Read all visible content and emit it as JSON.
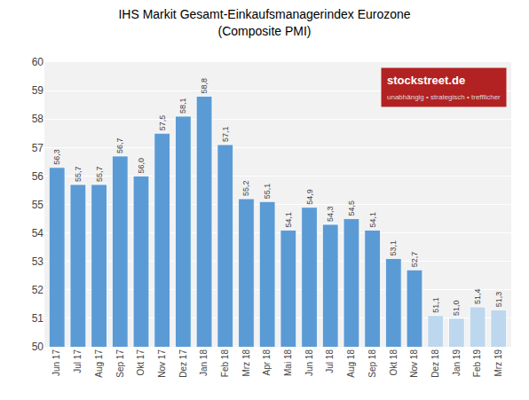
{
  "chart_data": {
    "type": "bar",
    "title": "IHS Markit Gesamt-Einkaufsmanagerindex Eurozone",
    "subtitle": "(Composite PMI)",
    "categories": [
      "Jun 17",
      "Jul 17",
      "Aug 17",
      "Sep 17",
      "Okt 17",
      "Nov 17",
      "Dez 17",
      "Jan 18",
      "Feb 18",
      "Mrz 18",
      "Apr 18",
      "Mai 18",
      "Jun 18",
      "Jul 18",
      "Aug 18",
      "Sep 18",
      "Okt 18",
      "Nov 18",
      "Dez 18",
      "Jan 19",
      "Feb 19",
      "Mrz 19"
    ],
    "values": [
      56.3,
      55.7,
      55.7,
      56.7,
      56.0,
      57.5,
      58.1,
      58.8,
      57.1,
      55.2,
      55.1,
      54.1,
      54.9,
      54.3,
      54.5,
      54.1,
      53.1,
      52.7,
      51.1,
      51.0,
      51.4,
      51.3
    ],
    "value_labels": [
      "56,3",
      "55,7",
      "55,7",
      "56,7",
      "56,0",
      "57,5",
      "58,1",
      "58,8",
      "57,1",
      "55,2",
      "55,1",
      "54,1",
      "54,9",
      "54,3",
      "54,5",
      "54,1",
      "53,1",
      "52,7",
      "51,1",
      "51,0",
      "51,4",
      "51,3"
    ],
    "colors": [
      "#5b9bd5",
      "#5b9bd5",
      "#5b9bd5",
      "#5b9bd5",
      "#5b9bd5",
      "#5b9bd5",
      "#5b9bd5",
      "#5b9bd5",
      "#5b9bd5",
      "#5b9bd5",
      "#5b9bd5",
      "#5b9bd5",
      "#5b9bd5",
      "#5b9bd5",
      "#5b9bd5",
      "#5b9bd5",
      "#5b9bd5",
      "#5b9bd5",
      "#bdd7ee",
      "#bdd7ee",
      "#bdd7ee",
      "#bdd7ee"
    ],
    "ylim": [
      50,
      60
    ],
    "yticks": [
      50,
      51,
      52,
      53,
      54,
      55,
      56,
      57,
      58,
      59,
      60
    ],
    "grid": true,
    "data_labels": true,
    "annotations": [
      "stockstreet.de",
      "unabhängig • strategisch • trefflicher"
    ]
  }
}
